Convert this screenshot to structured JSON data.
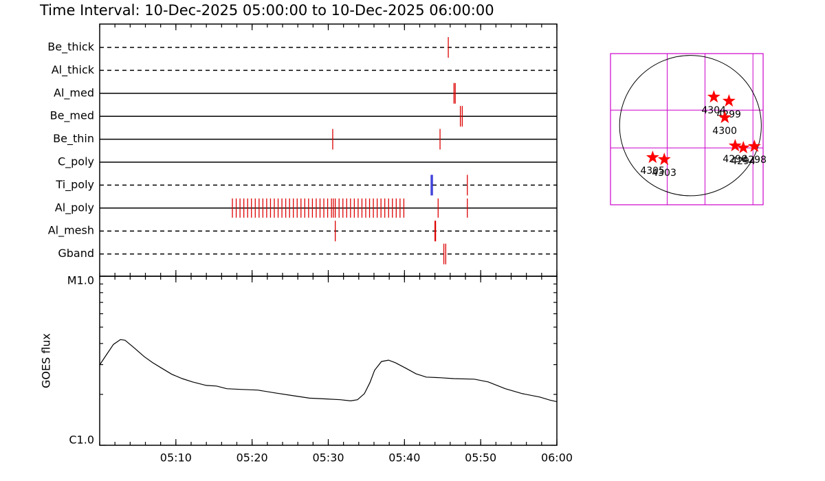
{
  "title": "Time Interval: 10-Dec-2025 05:00:00 to 10-Dec-2025 06:00:00",
  "chart_data": [
    {
      "type": "timeline",
      "series": [
        {
          "name": "Be_thick",
          "line": "dashed",
          "groups": [
            {
              "color": "#dd0000",
              "x": [
                "05:45:45"
              ]
            }
          ]
        },
        {
          "name": "Al_thick",
          "line": "dashed",
          "groups": []
        },
        {
          "name": "Al_med",
          "line": "solid",
          "groups": [
            {
              "color": "#dd0000",
              "x": [
                "05:46:30",
                "05:46:40"
              ]
            }
          ]
        },
        {
          "name": "Be_med",
          "line": "solid",
          "groups": [
            {
              "color": "#dd0000",
              "x": [
                "05:47:20",
                "05:47:35"
              ]
            }
          ]
        },
        {
          "name": "Be_thin",
          "line": "solid",
          "groups": [
            {
              "color": "#dd0000",
              "x": [
                "05:30:35",
                "05:44:40"
              ]
            }
          ]
        },
        {
          "name": "C_poly",
          "line": "solid",
          "groups": []
        },
        {
          "name": "Ti_poly",
          "line": "dashed",
          "groups": [
            {
              "color": "#0000cc",
              "x": [
                "05:43:30",
                "05:43:40"
              ]
            },
            {
              "color": "#dd0000",
              "x": [
                "05:48:15"
              ]
            }
          ]
        },
        {
          "name": "Al_poly",
          "line": "solid",
          "groups": [
            {
              "color": "#dd0000",
              "x": [
                "05:17:25",
                "05:17:55",
                "05:18:25",
                "05:18:55",
                "05:19:25",
                "05:19:55",
                "05:20:25",
                "05:20:55",
                "05:21:25",
                "05:21:55",
                "05:22:25",
                "05:22:55",
                "05:23:25",
                "05:23:55",
                "05:24:25",
                "05:24:55",
                "05:25:25",
                "05:25:55",
                "05:26:25",
                "05:26:55",
                "05:27:25",
                "05:27:55",
                "05:28:25",
                "05:28:55",
                "05:29:25",
                "05:29:55",
                "05:30:25",
                "05:30:55",
                "05:31:25",
                "05:31:55",
                "05:32:25",
                "05:32:55",
                "05:33:25",
                "05:33:55",
                "05:34:25",
                "05:34:55",
                "05:35:25",
                "05:35:55",
                "05:36:25",
                "05:36:55",
                "05:37:25",
                "05:37:55",
                "05:38:25",
                "05:38:55",
                "05:39:25",
                "05:39:55",
                "05:30:40",
                "05:44:25",
                "05:48:15"
              ]
            }
          ]
        },
        {
          "name": "Al_mesh",
          "line": "dashed",
          "groups": [
            {
              "color": "#dd0000",
              "x": [
                "05:30:55",
                "05:44:00",
                "05:44:05"
              ]
            }
          ]
        },
        {
          "name": "Gband",
          "line": "dashed",
          "groups": [
            {
              "color": "#dd0000",
              "x": [
                "05:45:10",
                "05:45:25"
              ]
            }
          ]
        }
      ]
    },
    {
      "type": "line",
      "ylabel": "GOES flux",
      "log": true,
      "color": "#000000",
      "xlim": [
        "05:00:00",
        "06:00:00"
      ],
      "xticks": [
        "05:10",
        "05:20",
        "05:30",
        "05:40",
        "05:50",
        "06:00"
      ],
      "ylim": [
        1e-06,
        1e-05
      ],
      "yticks": [
        {
          "value": 1e-05,
          "label": "M1.0"
        },
        {
          "value": 1e-06,
          "label": "C1.0"
        }
      ],
      "yminorticks": [
        2e-06,
        3e-06,
        4e-06,
        5e-06,
        6e-06,
        7e-06,
        8e-06,
        9e-06
      ],
      "x": [
        "05:00:00",
        "05:00:54",
        "05:01:48",
        "05:02:43",
        "05:03:20",
        "05:04:31",
        "05:05:52",
        "05:06:57",
        "05:08:07",
        "05:09:28",
        "05:10:50",
        "05:12:11",
        "05:13:59",
        "05:15:20",
        "05:16:41",
        "05:18:30",
        "05:20:45",
        "05:23:01",
        "05:25:16",
        "05:27:31",
        "05:29:47",
        "05:31:35",
        "05:32:56",
        "05:33:50",
        "05:34:44",
        "05:35:28",
        "05:36:05",
        "05:36:59",
        "05:37:54",
        "05:38:48",
        "05:40:09",
        "05:41:30",
        "05:42:52",
        "05:44:40",
        "05:46:28",
        "05:49:10",
        "05:50:59",
        "05:53:14",
        "05:55:29",
        "05:57:45",
        "05:59:06",
        "06:00:00"
      ],
      "values": [
        2.99e-06,
        3.44e-06,
        3.95e-06,
        4.22e-06,
        4.18e-06,
        3.77e-06,
        3.34e-06,
        3.08e-06,
        2.86e-06,
        2.63e-06,
        2.48e-06,
        2.37e-06,
        2.26e-06,
        2.24e-06,
        2.16e-06,
        2.14e-06,
        2.12e-06,
        2.04e-06,
        1.97e-06,
        1.9e-06,
        1.88e-06,
        1.86e-06,
        1.83e-06,
        1.86e-06,
        2.02e-06,
        2.35e-06,
        2.78e-06,
        3.13e-06,
        3.19e-06,
        3.08e-06,
        2.86e-06,
        2.65e-06,
        2.53e-06,
        2.51e-06,
        2.48e-06,
        2.46e-06,
        2.37e-06,
        2.16e-06,
        2.02e-06,
        1.93e-06,
        1.85e-06,
        1.81e-06
      ]
    },
    {
      "type": "scatter",
      "color": "#ff0000",
      "grid_color": "#cc00cc",
      "radius": 975,
      "xlim": [
        -1100,
        1000
      ],
      "ylim": [
        -1100,
        1000
      ],
      "xgrid": [
        -320,
        200,
        860
      ],
      "ygrid": [
        -310,
        215
      ],
      "labels": [
        "4304",
        "4299",
        "4300",
        "4296",
        "4294",
        "4298",
        "4305",
        "4303"
      ],
      "x": [
        322,
        530,
        473,
        615,
        728,
        880,
        -520,
        -360
      ],
      "y": [
        398,
        341,
        112,
        -280,
        -308,
        -289,
        -442,
        -470
      ]
    }
  ]
}
